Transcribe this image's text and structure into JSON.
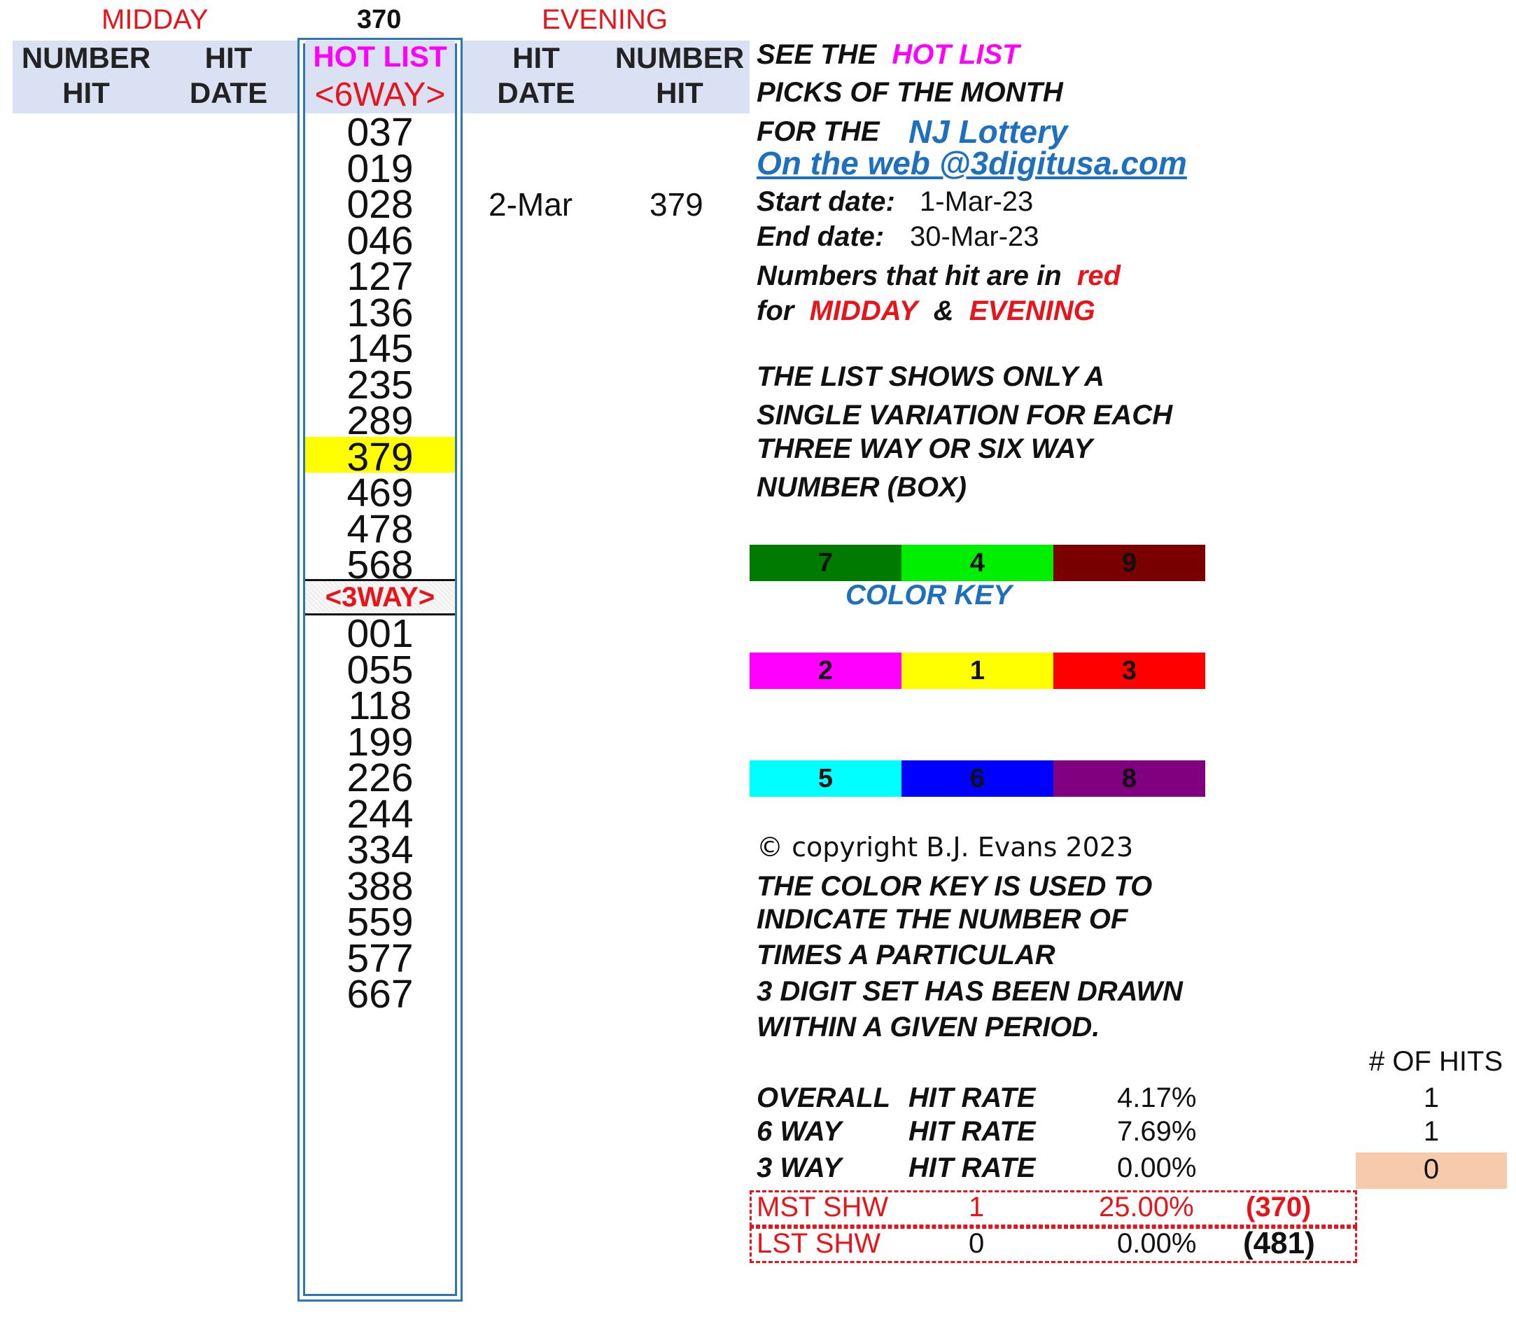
{
  "top": {
    "midday": "MIDDAY",
    "center_number": "370",
    "evening": "EVENING"
  },
  "headers": {
    "midday_number": [
      "NUMBER",
      "HIT"
    ],
    "midday_date": [
      "HIT",
      "DATE"
    ],
    "hot_list": "HOT LIST",
    "six_way": "<6WAY>",
    "evening_date": [
      "HIT",
      "DATE"
    ],
    "evening_number": [
      "NUMBER",
      "HIT"
    ]
  },
  "hot_list_6way": [
    "037",
    "019",
    "028",
    "046",
    "127",
    "136",
    "145",
    "235",
    "289",
    "379",
    "469",
    "478",
    "568"
  ],
  "three_way_label": "<3WAY>",
  "hot_list_3way": [
    "001",
    "055",
    "118",
    "199",
    "226",
    "244",
    "334",
    "388",
    "559",
    "577",
    "667"
  ],
  "highlighted": "379",
  "evening_hits": [
    {
      "date": "2-Mar",
      "number": "379"
    }
  ],
  "notes": {
    "see_the": "SEE THE",
    "hot_list": "HOT LIST",
    "picks": "PICKS OF THE MONTH",
    "for_the": "FOR THE",
    "nj_lottery": "NJ Lottery",
    "web": "On the web @3digitusa.com",
    "start_label": "Start date:",
    "start_value": "1-Mar-23",
    "end_label": "End date:",
    "end_value": "30-Mar-23",
    "hit_red_1": "Numbers that hit are in",
    "hit_red_2": "red",
    "for": "for",
    "midday": "MIDDAY",
    "amp": "&",
    "evening": "EVENING",
    "list_lines": [
      "THE LIST SHOWS ONLY A",
      "SINGLE VARIATION FOR EACH",
      "THREE WAY OR SIX WAY",
      "NUMBER (BOX)"
    ],
    "color_key": "COLOR KEY",
    "copyright": "© copyright B.J. Evans 2023",
    "key_lines": [
      "THE COLOR KEY IS USED TO",
      "INDICATE THE NUMBER OF",
      "TIMES A PARTICULAR",
      "3 DIGIT SET HAS BEEN DRAWN",
      "WITHIN A GIVEN PERIOD."
    ]
  },
  "color_key": [
    [
      {
        "label": "7",
        "color": "#007a00"
      },
      {
        "label": "4",
        "color": "#00ee00"
      },
      {
        "label": "9",
        "color": "#7a0000"
      }
    ],
    [
      {
        "label": "2",
        "color": "#ff00ff"
      },
      {
        "label": "1",
        "color": "#ffff00"
      },
      {
        "label": "3",
        "color": "#ff0000"
      }
    ],
    [
      {
        "label": "5",
        "color": "#00ffff"
      },
      {
        "label": "6",
        "color": "#0000ff"
      },
      {
        "label": "8",
        "color": "#800080"
      }
    ]
  ],
  "stats": {
    "hits_header": "# OF HITS",
    "rows": [
      {
        "a": "OVERALL",
        "b": "HIT RATE",
        "rate": "4.17%",
        "hits": "1"
      },
      {
        "a": "6 WAY",
        "b": "HIT RATE",
        "rate": "7.69%",
        "hits": "1"
      },
      {
        "a": "3 WAY",
        "b": "HIT RATE",
        "rate": "0.00%",
        "hits": "0"
      }
    ],
    "mst": {
      "label": "MST SHW",
      "count": "1",
      "pct": "25.00%",
      "num": "(370)"
    },
    "lst": {
      "label": "LST SHW",
      "count": "0",
      "pct": "0.00%",
      "num": "(481)"
    }
  }
}
